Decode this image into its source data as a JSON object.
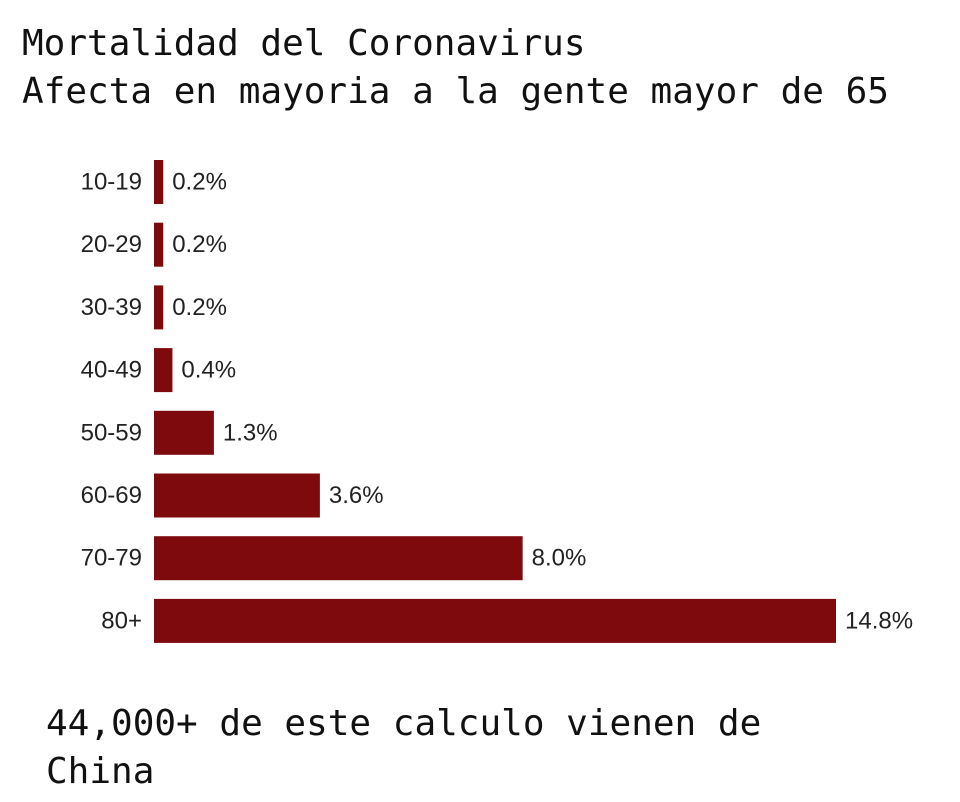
{
  "chart_data": {
    "type": "bar",
    "orientation": "horizontal",
    "title": "Mortalidad del Coronavirus",
    "subtitle": "Afecta en mayoria a la gente mayor de 65",
    "categories": [
      "10-19",
      "20-29",
      "30-39",
      "40-49",
      "50-59",
      "60-69",
      "70-79",
      "80+"
    ],
    "values": [
      0.2,
      0.2,
      0.2,
      0.4,
      1.3,
      3.6,
      8.0,
      14.8
    ],
    "value_labels": [
      "0.2%",
      "0.2%",
      "0.2%",
      "0.4%",
      "1.3%",
      "3.6%",
      "8.0%",
      "14.8%"
    ],
    "xlim": [
      0,
      14.8
    ],
    "grid": false,
    "bar_color": "#7f0a0e",
    "footnote": "44,000+ de este calculo vienen de\nChina"
  }
}
